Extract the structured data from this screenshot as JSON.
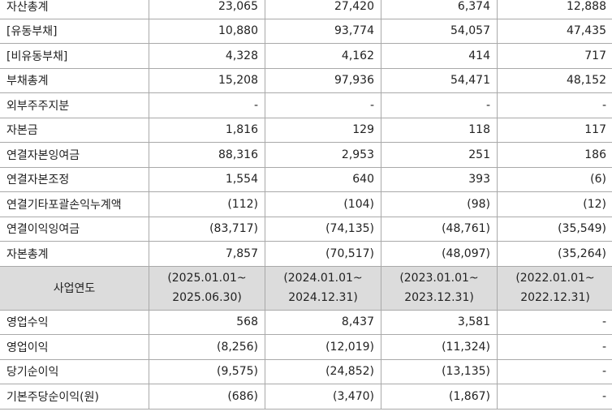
{
  "balance_rows": [
    {
      "label": "자산총계",
      "values": [
        "23,065",
        "27,420",
        "6,374",
        "12,888"
      ]
    },
    {
      "label": "[유동부채]",
      "values": [
        "10,880",
        "93,774",
        "54,057",
        "47,435"
      ]
    },
    {
      "label": "[비유동부채]",
      "values": [
        "4,328",
        "4,162",
        "414",
        "717"
      ]
    },
    {
      "label": "부채총계",
      "values": [
        "15,208",
        "97,936",
        "54,471",
        "48,152"
      ]
    },
    {
      "label": "외부주주지분",
      "values": [
        "-",
        "-",
        "-",
        "-"
      ]
    },
    {
      "label": "자본금",
      "values": [
        "1,816",
        "129",
        "118",
        "117"
      ]
    },
    {
      "label": "연결자본잉여금",
      "values": [
        "88,316",
        "2,953",
        "251",
        "186"
      ]
    },
    {
      "label": "연결자본조정",
      "values": [
        "1,554",
        "640",
        "393",
        "(6)"
      ]
    },
    {
      "label": "연결기타포괄손익누계액",
      "values": [
        "(112)",
        "(104)",
        "(98)",
        "(12)"
      ]
    },
    {
      "label": "연결이익잉여금",
      "values": [
        "(83,717)",
        "(74,135)",
        "(48,761)",
        "(35,549)"
      ]
    },
    {
      "label": "자본총계",
      "values": [
        "7,857",
        "(70,517)",
        "(48,097)",
        "(35,264)"
      ]
    }
  ],
  "period_header": {
    "label": "사업연도",
    "periods": [
      {
        "start": "(2025.01.01~",
        "end": "2025.06.30)"
      },
      {
        "start": "(2024.01.01~",
        "end": "2024.12.31)"
      },
      {
        "start": "(2023.01.01~",
        "end": "2023.12.31)"
      },
      {
        "start": "(2022.01.01~",
        "end": "2022.12.31)"
      }
    ]
  },
  "income_rows": [
    {
      "label": "영업수익",
      "values": [
        "568",
        "8,437",
        "3,581",
        "-"
      ]
    },
    {
      "label": "영업이익",
      "values": [
        "(8,256)",
        "(12,019)",
        "(11,324)",
        "-"
      ]
    },
    {
      "label": "당기순이익",
      "values": [
        "(9,575)",
        "(24,852)",
        "(13,135)",
        "-"
      ]
    },
    {
      "label": "기본주당순이익(원)",
      "values": [
        "(686)",
        "(3,470)",
        "(1,867)",
        "-"
      ]
    }
  ]
}
